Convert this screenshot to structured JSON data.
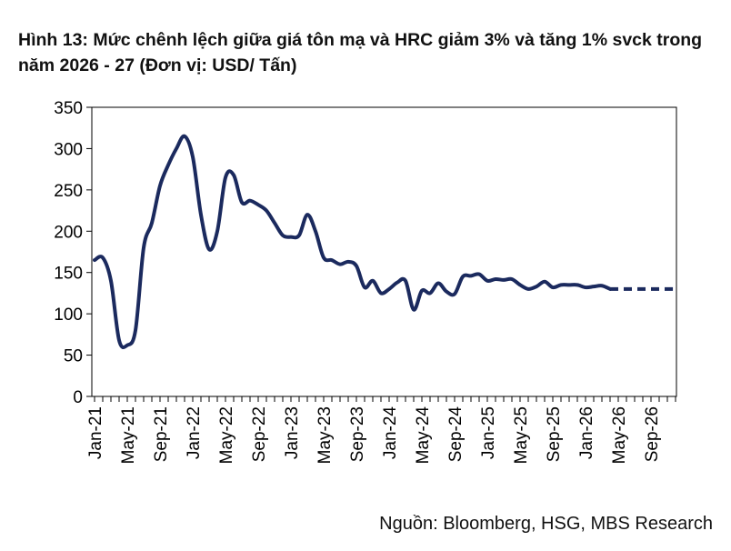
{
  "title": "Hình 13: Mức chênh lệch giữa giá tôn mạ và HRC giảm 3% và tăng 1% svck trong năm 2026 - 27 (Đơn vị: USD/ Tấn)",
  "source": "Nguồn: Bloomberg, HSG, MBS Research",
  "chart_data": {
    "type": "line",
    "title": "Hình 13: Mức chênh lệch giữa giá tôn mạ và HRC giảm 3% và tăng 1% svck trong năm 2026 - 27 (Đơn vị: USD/ Tấn)",
    "xlabel": "",
    "ylabel": "",
    "ylim": [
      0,
      350
    ],
    "yticks": [
      0,
      50,
      100,
      150,
      200,
      250,
      300,
      350
    ],
    "xlim": [
      "2021-01",
      "2026-12"
    ],
    "xticks": [
      "Jan-21",
      "May-21",
      "Sep-21",
      "Jan-22",
      "May-22",
      "Sep-22",
      "Jan-23",
      "May-23",
      "Sep-23",
      "Jan-24",
      "May-24",
      "Sep-24",
      "Jan-25",
      "May-25",
      "Sep-25",
      "Jan-26",
      "May-26",
      "Sep-26"
    ],
    "grid": false,
    "legend": "none",
    "line_color": "#1b2a5e",
    "series": [
      {
        "style": "solid",
        "points": [
          [
            "2021-01",
            165
          ],
          [
            "2021-02",
            168
          ],
          [
            "2021-03",
            140
          ],
          [
            "2021-04",
            68
          ],
          [
            "2021-05",
            62
          ],
          [
            "2021-06",
            80
          ],
          [
            "2021-07",
            180
          ],
          [
            "2021-08",
            210
          ],
          [
            "2021-09",
            255
          ],
          [
            "2021-10",
            280
          ],
          [
            "2021-11",
            300
          ],
          [
            "2021-12",
            315
          ],
          [
            "2022-01",
            290
          ],
          [
            "2022-02",
            220
          ],
          [
            "2022-03",
            178
          ],
          [
            "2022-04",
            200
          ],
          [
            "2022-05",
            265
          ],
          [
            "2022-06",
            268
          ],
          [
            "2022-07",
            235
          ],
          [
            "2022-08",
            237
          ],
          [
            "2022-09",
            232
          ],
          [
            "2022-10",
            225
          ],
          [
            "2022-11",
            210
          ],
          [
            "2022-12",
            195
          ],
          [
            "2023-01",
            193
          ],
          [
            "2023-02",
            195
          ],
          [
            "2023-03",
            220
          ],
          [
            "2023-04",
            200
          ],
          [
            "2023-05",
            168
          ],
          [
            "2023-06",
            165
          ],
          [
            "2023-07",
            160
          ],
          [
            "2023-08",
            163
          ],
          [
            "2023-09",
            158
          ],
          [
            "2023-10",
            132
          ],
          [
            "2023-11",
            140
          ],
          [
            "2023-12",
            125
          ],
          [
            "2024-01",
            130
          ],
          [
            "2024-02",
            138
          ],
          [
            "2024-03",
            140
          ],
          [
            "2024-04",
            105
          ],
          [
            "2024-05",
            128
          ],
          [
            "2024-06",
            125
          ],
          [
            "2024-07",
            137
          ],
          [
            "2024-08",
            127
          ],
          [
            "2024-09",
            124
          ],
          [
            "2024-10",
            145
          ],
          [
            "2024-11",
            146
          ],
          [
            "2024-12",
            148
          ],
          [
            "2025-01",
            140
          ],
          [
            "2025-02",
            142
          ],
          [
            "2025-03",
            141
          ],
          [
            "2025-04",
            142
          ],
          [
            "2025-05",
            135
          ],
          [
            "2025-06",
            130
          ],
          [
            "2025-07",
            133
          ],
          [
            "2025-08",
            139
          ],
          [
            "2025-09",
            132
          ],
          [
            "2025-10",
            135
          ],
          [
            "2025-11",
            135
          ],
          [
            "2025-12",
            135
          ],
          [
            "2026-01",
            132
          ],
          [
            "2026-02",
            133
          ],
          [
            "2026-03",
            134
          ],
          [
            "2026-04",
            130
          ]
        ]
      },
      {
        "style": "dashed",
        "points": [
          [
            "2026-04",
            130
          ],
          [
            "2026-05",
            130
          ],
          [
            "2026-06",
            130
          ],
          [
            "2026-07",
            130
          ],
          [
            "2026-08",
            130
          ],
          [
            "2026-09",
            130
          ],
          [
            "2026-10",
            130
          ],
          [
            "2026-11",
            130
          ],
          [
            "2026-12",
            130
          ]
        ]
      }
    ]
  }
}
